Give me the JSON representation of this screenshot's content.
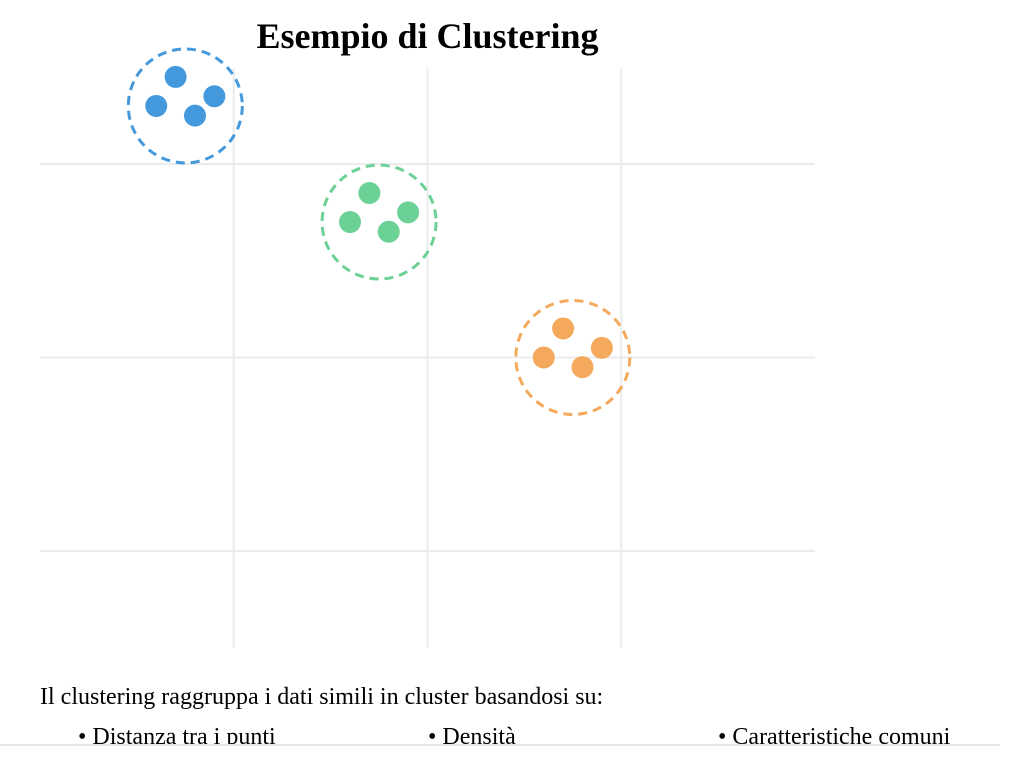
{
  "chart_data": {
    "type": "scatter",
    "title": "Esempio di Clustering",
    "xlabel": "",
    "ylabel": "",
    "grid": true,
    "xlim": [
      0,
      4
    ],
    "ylim": [
      0,
      3
    ],
    "grid_x": [
      1,
      2,
      3
    ],
    "grid_y": [
      1,
      2,
      3
    ],
    "clusters": [
      {
        "color": "#4499dd",
        "center": [
          0.75,
          2.3
        ],
        "radius": 0.3,
        "points": [
          [
            0.7,
            2.45
          ],
          [
            0.6,
            2.3
          ],
          [
            0.8,
            2.25
          ],
          [
            0.9,
            2.35
          ]
        ]
      },
      {
        "color": "#6cd196",
        "center": [
          1.75,
          1.7
        ],
        "radius": 0.3,
        "points": [
          [
            1.7,
            1.85
          ],
          [
            1.6,
            1.7
          ],
          [
            1.8,
            1.65
          ],
          [
            1.9,
            1.75
          ]
        ]
      },
      {
        "color": "#f4a95c",
        "center": [
          2.75,
          1.0
        ],
        "radius": 0.3,
        "points": [
          [
            2.7,
            1.15
          ],
          [
            2.6,
            1.0
          ],
          [
            2.8,
            0.95
          ],
          [
            2.9,
            1.05
          ]
        ]
      }
    ]
  },
  "caption": "Il clustering raggruppa i dati simili in cluster basandosi su:",
  "bullets": [
    "• Distanza tra i punti",
    "• Densità",
    "• Caratteristiche comuni"
  ]
}
